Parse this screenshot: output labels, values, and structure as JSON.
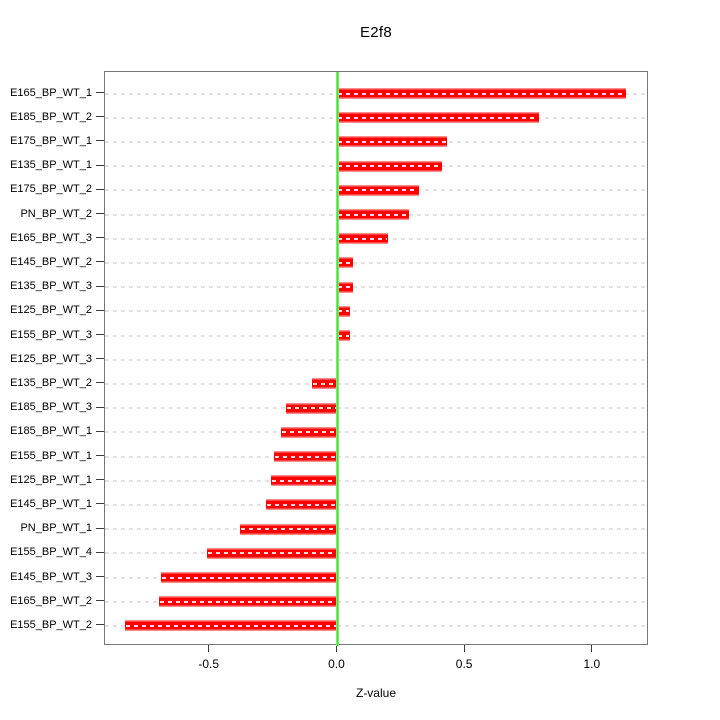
{
  "chart_data": {
    "type": "bar",
    "orientation": "horizontal",
    "title": "E2f8",
    "xlabel": "Z-value",
    "ylabel": "",
    "categories": [
      "E165_BP_WT_1",
      "E185_BP_WT_2",
      "E175_BP_WT_1",
      "E135_BP_WT_1",
      "E175_BP_WT_2",
      "PN_BP_WT_2",
      "E165_BP_WT_3",
      "E145_BP_WT_2",
      "E135_BP_WT_3",
      "E125_BP_WT_2",
      "E155_BP_WT_3",
      "E125_BP_WT_3",
      "E135_BP_WT_2",
      "E185_BP_WT_3",
      "E185_BP_WT_1",
      "E155_BP_WT_1",
      "E125_BP_WT_1",
      "E145_BP_WT_1",
      "PN_BP_WT_1",
      "E155_BP_WT_4",
      "E145_BP_WT_3",
      "E165_BP_WT_2",
      "E155_BP_WT_2"
    ],
    "values": [
      1.13,
      0.79,
      0.43,
      0.41,
      0.32,
      0.28,
      0.2,
      0.06,
      0.06,
      0.05,
      0.05,
      0.0,
      -0.1,
      -0.2,
      -0.22,
      -0.25,
      -0.26,
      -0.28,
      -0.38,
      -0.51,
      -0.69,
      -0.7,
      -0.83
    ],
    "xticks": [
      -0.5,
      0.0,
      0.5,
      1.0
    ],
    "xtick_labels": [
      "-0.5",
      "0.0",
      "0.5",
      "1.0"
    ],
    "xlim": [
      -0.91,
      1.22
    ],
    "grid": "horizontal dashed gridline at each category row",
    "legend": "none",
    "zero_reference_line": 0.0,
    "colors": {
      "bar": "#ff0000",
      "bar_edge_highlight": "#ff8a8a",
      "bar_center_dash": "#ffffff",
      "zero_line": "#3fe437",
      "gridline": "#e2e2e2",
      "box_border": "#777777",
      "tick": "#3a3a3a",
      "text": "#000000",
      "background": "#ffffff"
    }
  }
}
